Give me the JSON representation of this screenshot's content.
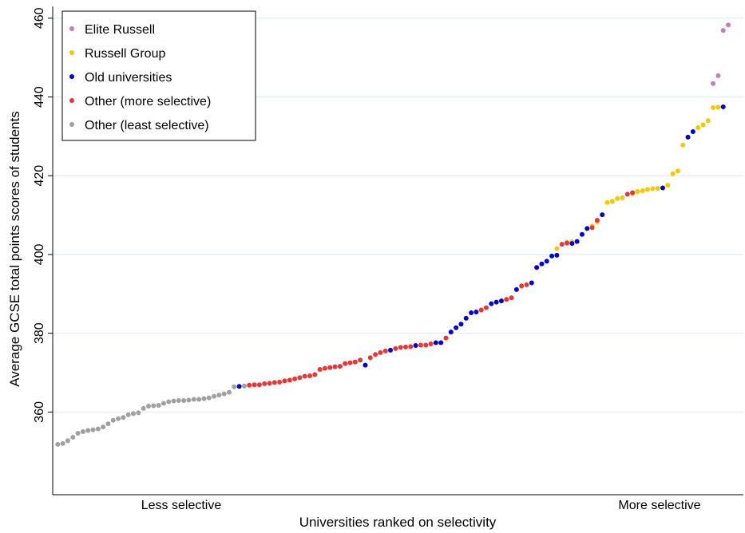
{
  "chart_data": {
    "type": "scatter",
    "xlabel": "Universities ranked on selectivity",
    "ylabel": "Average GCSE total points scores of students",
    "x_tick_labels": [
      "Less selective",
      "More selective"
    ],
    "y_ticks": [
      360,
      380,
      400,
      420,
      440,
      460
    ],
    "ylim": [
      339,
      463
    ],
    "xlim": [
      -1,
      136
    ],
    "grid": "horizontal",
    "legend_position": "top-left",
    "series": [
      {
        "name": "Elite Russell",
        "color": "#c77cbc",
        "points": [
          [
            130,
            443.4
          ],
          [
            131,
            445.4
          ],
          [
            132,
            456.9
          ],
          [
            133,
            458.3
          ]
        ]
      },
      {
        "name": "Russell Group",
        "color": "#f5c800",
        "points": [
          [
            99,
            401.5
          ],
          [
            101,
            403.1
          ],
          [
            102,
            403.2
          ],
          [
            106,
            407.2
          ],
          [
            107,
            408.3
          ],
          [
            109,
            413.2
          ],
          [
            110,
            413.5
          ],
          [
            111,
            414.2
          ],
          [
            112,
            414.4
          ],
          [
            114,
            415.5
          ],
          [
            115,
            416.0
          ],
          [
            116,
            416.2
          ],
          [
            117,
            416.5
          ],
          [
            118,
            416.7
          ],
          [
            119,
            416.8
          ],
          [
            121,
            417.6
          ],
          [
            122,
            420.5
          ],
          [
            123,
            421.2
          ],
          [
            124,
            427.8
          ],
          [
            127,
            432.2
          ],
          [
            128,
            432.9
          ],
          [
            129,
            434.0
          ],
          [
            130,
            437.3
          ],
          [
            131,
            437.4
          ]
        ]
      },
      {
        "name": "Old universities",
        "color": "#0000d8",
        "points": [
          [
            36,
            366.5
          ],
          [
            61,
            371.9
          ],
          [
            66,
            375.7
          ],
          [
            71,
            376.9
          ],
          [
            75,
            377.6
          ],
          [
            76,
            377.6
          ],
          [
            78,
            380.3
          ],
          [
            79,
            381.4
          ],
          [
            80,
            382.3
          ],
          [
            81,
            383.8
          ],
          [
            82,
            385.2
          ],
          [
            83,
            385.4
          ],
          [
            86,
            387.5
          ],
          [
            87,
            387.9
          ],
          [
            88,
            388.2
          ],
          [
            91,
            391.1
          ],
          [
            94,
            392.8
          ],
          [
            95,
            396.7
          ],
          [
            96,
            397.6
          ],
          [
            97,
            398.3
          ],
          [
            98,
            399.6
          ],
          [
            99,
            399.8
          ],
          [
            102,
            402.8
          ],
          [
            103,
            403.3
          ],
          [
            104,
            405.1
          ],
          [
            105,
            406.6
          ],
          [
            108,
            410.1
          ],
          [
            120,
            416.9
          ],
          [
            125,
            429.8
          ],
          [
            126,
            431.2
          ],
          [
            132,
            437.5
          ]
        ]
      },
      {
        "name": "Other (more selective)",
        "color": "#ee3333",
        "points": [
          [
            38,
            366.8
          ],
          [
            39,
            366.9
          ],
          [
            40,
            366.9
          ],
          [
            41,
            367.2
          ],
          [
            42,
            367.3
          ],
          [
            43,
            367.5
          ],
          [
            44,
            367.6
          ],
          [
            45,
            367.9
          ],
          [
            46,
            368.1
          ],
          [
            47,
            368.4
          ],
          [
            48,
            368.7
          ],
          [
            49,
            369.1
          ],
          [
            50,
            369.2
          ],
          [
            51,
            369.5
          ],
          [
            52,
            370.8
          ],
          [
            53,
            371.1
          ],
          [
            54,
            371.3
          ],
          [
            55,
            371.5
          ],
          [
            56,
            371.6
          ],
          [
            57,
            372.3
          ],
          [
            58,
            372.5
          ],
          [
            59,
            372.7
          ],
          [
            60,
            373.2
          ],
          [
            62,
            373.8
          ],
          [
            63,
            374.6
          ],
          [
            64,
            375.1
          ],
          [
            65,
            375.5
          ],
          [
            67,
            376.1
          ],
          [
            68,
            376.4
          ],
          [
            69,
            376.5
          ],
          [
            70,
            376.6
          ],
          [
            72,
            377.0
          ],
          [
            73,
            377.0
          ],
          [
            74,
            377.3
          ],
          [
            77,
            378.8
          ],
          [
            84,
            385.9
          ],
          [
            85,
            386.5
          ],
          [
            89,
            388.6
          ],
          [
            90,
            389.0
          ],
          [
            92,
            392.0
          ],
          [
            93,
            392.3
          ],
          [
            100,
            402.6
          ],
          [
            101,
            402.9
          ],
          [
            106,
            406.8
          ],
          [
            107,
            408.7
          ],
          [
            113,
            415.3
          ],
          [
            114,
            415.7
          ]
        ]
      },
      {
        "name": "Other (least selective)",
        "color": "#a0a0a0",
        "points": [
          [
            0,
            351.8
          ],
          [
            1,
            352.0
          ],
          [
            2,
            352.7
          ],
          [
            3,
            353.6
          ],
          [
            4,
            354.6
          ],
          [
            5,
            355.0
          ],
          [
            6,
            355.3
          ],
          [
            7,
            355.5
          ],
          [
            8,
            355.7
          ],
          [
            9,
            356.2
          ],
          [
            10,
            357.0
          ],
          [
            11,
            357.9
          ],
          [
            12,
            358.3
          ],
          [
            13,
            358.6
          ],
          [
            14,
            359.3
          ],
          [
            15,
            359.6
          ],
          [
            16,
            359.8
          ],
          [
            17,
            360.9
          ],
          [
            18,
            361.5
          ],
          [
            19,
            361.6
          ],
          [
            20,
            361.7
          ],
          [
            21,
            362.2
          ],
          [
            22,
            362.6
          ],
          [
            23,
            362.8
          ],
          [
            24,
            362.9
          ],
          [
            25,
            362.9
          ],
          [
            26,
            363.0
          ],
          [
            27,
            363.2
          ],
          [
            28,
            363.2
          ],
          [
            29,
            363.4
          ],
          [
            30,
            363.6
          ],
          [
            31,
            364.0
          ],
          [
            32,
            364.3
          ],
          [
            33,
            364.6
          ],
          [
            34,
            365.0
          ],
          [
            35,
            366.4
          ],
          [
            37,
            366.6
          ]
        ]
      }
    ]
  }
}
